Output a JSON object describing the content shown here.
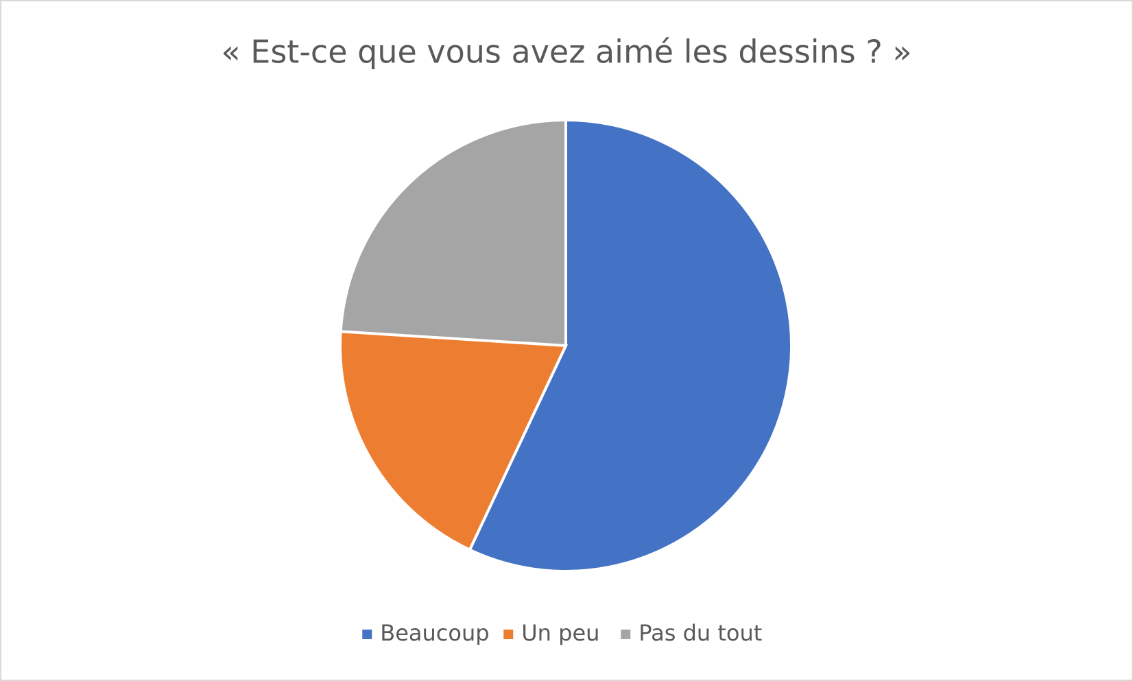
{
  "chart_data": {
    "type": "pie",
    "title": "« Est-ce que vous avez aimé les dessins ? »",
    "categories": [
      "Beaucoup",
      "Un peu",
      "Pas du tout"
    ],
    "values": [
      57,
      19,
      24
    ],
    "colors": [
      "#4472c4",
      "#ed7d31",
      "#a5a5a5"
    ],
    "legend": "bottom"
  }
}
